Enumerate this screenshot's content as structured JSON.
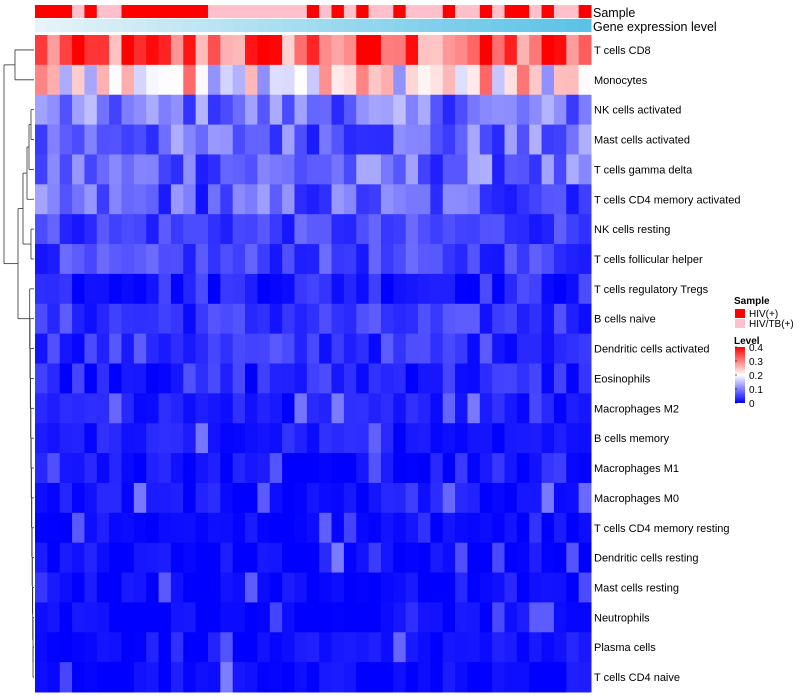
{
  "chart_data": {
    "type": "heatmap",
    "columns": 45,
    "rows": [
      "T cells CD8",
      "Monocytes",
      "NK cells activated",
      "Mast cells activated",
      "T cells gamma delta",
      "T cells CD4 memory activated",
      "NK cells resting",
      "T cells follicular helper",
      "T cells regulatory  Tregs",
      "B cells naive",
      "Dendritic cells activated",
      "Eosinophils",
      "Macrophages M2",
      "B cells memory",
      "Macrophages M1",
      "Macrophages M0",
      "T cells CD4 memory resting",
      "Dendritic cells resting",
      "Mast cells resting",
      "Neutrophils",
      "Plasma cells",
      "T cells CD4 naive"
    ],
    "row_means": [
      0.32,
      0.22,
      0.09,
      0.08,
      0.08,
      0.07,
      0.05,
      0.05,
      0.03,
      0.04,
      0.04,
      0.03,
      0.02,
      0.02,
      0.015,
      0.015,
      0.005,
      0.005,
      0.004,
      0.003,
      0.01,
      0.005
    ],
    "sample_annotation": {
      "label": "Sample",
      "values": [
        0,
        0,
        0,
        1,
        0,
        1,
        1,
        0,
        0,
        0,
        0,
        0,
        0,
        0,
        1,
        1,
        1,
        1,
        1,
        1,
        1,
        1,
        0,
        1,
        0,
        1,
        0,
        1,
        1,
        0,
        1,
        1,
        1,
        0,
        1,
        1,
        0,
        1,
        0,
        0,
        1,
        0,
        1,
        1,
        0
      ]
    },
    "gene_annotation": {
      "label": "Gene expression level",
      "gradient_start": "#e6f3f8",
      "gradient_end": "#5bc2e7"
    },
    "legend_sample": {
      "title": "Sample",
      "entries": [
        {
          "label": "HIV(+)",
          "color": "#ff0000"
        },
        {
          "label": "HIV/TB(+)",
          "color": "#ffc0cb"
        }
      ]
    },
    "legend_level": {
      "title": "Level",
      "ticks": [
        "0.4",
        "0.3",
        "0.2",
        "0.1",
        "0"
      ],
      "tick_values": [
        0.4,
        0.3,
        0.2,
        0.1,
        0
      ],
      "range": [
        0,
        0.4
      ],
      "colors": [
        "#0000ff",
        "#ffffff",
        "#ff0000"
      ]
    }
  }
}
